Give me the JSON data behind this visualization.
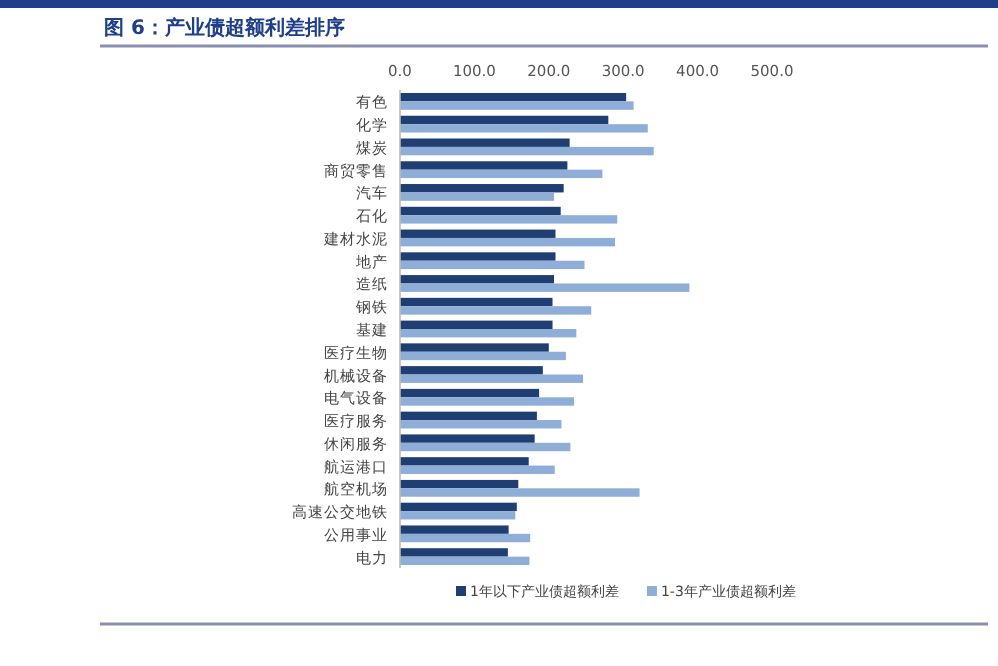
{
  "chart_data": {
    "type": "bar",
    "orientation": "horizontal",
    "title": "图 6：产业债超额利差排序",
    "categories": [
      "有色",
      "化学",
      "煤炭",
      "商贸零售",
      "汽车",
      "石化",
      "建材水泥",
      "地产",
      "造纸",
      "钢铁",
      "基建",
      "医疗生物",
      "机械设备",
      "电气设备",
      "医疗服务",
      "休闲服务",
      "航运港口",
      "航空机场",
      "高速公交地铁",
      "公用事业",
      "电力"
    ],
    "series": [
      {
        "name": "1年以下产业债超额利差",
        "color": "#1f3f73",
        "values": [
          304,
          280,
          228,
          225,
          220,
          216,
          209,
          209,
          207,
          205,
          205,
          200,
          192,
          187,
          184,
          181,
          173,
          159,
          157,
          146,
          145
        ]
      },
      {
        "name": "1-3年产业债超额利差",
        "color": "#8eaed8",
        "values": [
          314,
          333,
          341,
          272,
          207,
          292,
          289,
          248,
          389,
          257,
          237,
          223,
          246,
          234,
          217,
          229,
          208,
          322,
          155,
          175,
          174
        ]
      }
    ],
    "xlim": [
      0,
      500
    ],
    "xticks": [
      {
        "value": 0,
        "label": "0.0"
      },
      {
        "value": 100,
        "label": "100.0"
      },
      {
        "value": 200,
        "label": "200.0"
      },
      {
        "value": 300,
        "label": "300.0"
      },
      {
        "value": 400,
        "label": "400.0"
      },
      {
        "value": 500,
        "label": "500.0"
      }
    ],
    "grid": false,
    "legend": "bottom"
  }
}
